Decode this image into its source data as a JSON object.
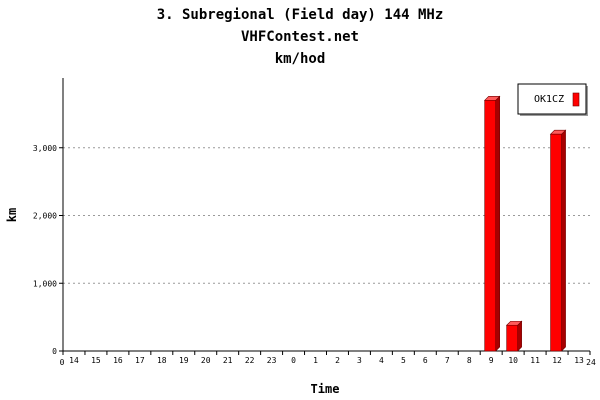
{
  "chart_data": {
    "type": "bar",
    "title": "3. Subregional (Field day) 144 MHz",
    "subtitle": "VHFContest.net",
    "subtitle2": "km/hod",
    "xlabel": "Time",
    "ylabel": "km",
    "ylim": [
      0,
      4000
    ],
    "y_ticks": [
      0,
      1000,
      2000,
      3000
    ],
    "y_tick_labels": [
      "0",
      "1,000",
      "2,000",
      "3,000"
    ],
    "grid": true,
    "legend_position": "top-right",
    "categories": [
      "14",
      "15",
      "16",
      "17",
      "18",
      "19",
      "20",
      "21",
      "22",
      "23",
      "0",
      "1",
      "2",
      "3",
      "4",
      "5",
      "6",
      "7",
      "8",
      "9",
      "10",
      "11",
      "12",
      "13"
    ],
    "axis_start_label": "0",
    "axis_end_label": "24",
    "series": [
      {
        "name": "OK1CZ",
        "color": "#ff0000",
        "values": [
          0,
          0,
          0,
          0,
          0,
          0,
          0,
          0,
          0,
          0,
          0,
          0,
          0,
          0,
          0,
          0,
          0,
          0,
          0,
          3700,
          380,
          0,
          3200,
          0
        ]
      }
    ]
  }
}
